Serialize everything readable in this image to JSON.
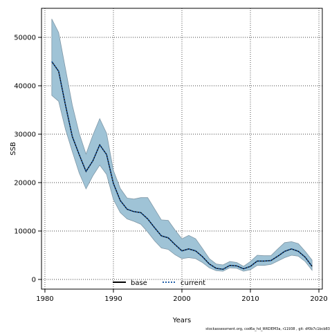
{
  "chart_data": {
    "type": "line",
    "xlabel": "Years",
    "ylabel": "SSB",
    "xlim": [
      1979.5,
      2020.5
    ],
    "ylim": [
      -2000,
      56000
    ],
    "x_ticks": [
      1980,
      1990,
      2000,
      2010,
      2020
    ],
    "y_ticks": [
      0,
      10000,
      20000,
      30000,
      40000,
      50000
    ],
    "grid": true,
    "legend_placement": "bottom-center",
    "band_color": "#9fc3d6",
    "band_edge_color": "#7f97a6",
    "x": [
      1981,
      1982,
      1983,
      1984,
      1985,
      1986,
      1987,
      1988,
      1989,
      1990,
      1991,
      1992,
      1993,
      1994,
      1995,
      1996,
      1997,
      1998,
      1999,
      2000,
      2001,
      2002,
      2003,
      2004,
      2005,
      2006,
      2007,
      2008,
      2009,
      2010,
      2011,
      2012,
      2013,
      2014,
      2015,
      2016,
      2017,
      2018,
      2019
    ],
    "series": [
      {
        "name": "base",
        "style": "solid",
        "color": "#000000",
        "values": [
          45000,
          43000,
          36000,
          29500,
          25800,
          22300,
          24500,
          27800,
          25800,
          19800,
          16300,
          14500,
          14000,
          13800,
          12500,
          10700,
          9000,
          8600,
          7200,
          5900,
          6300,
          5900,
          4700,
          3200,
          2300,
          2100,
          2900,
          2800,
          2200,
          2700,
          3800,
          3800,
          3900,
          4800,
          5800,
          6300,
          5800,
          4600,
          2700
        ]
      },
      {
        "name": "current",
        "style": "dotted",
        "color": "#1d5ca6",
        "values": [
          45000,
          43000,
          36000,
          29500,
          25800,
          22300,
          24500,
          27800,
          25800,
          19800,
          16300,
          14500,
          14000,
          13800,
          12500,
          10700,
          9000,
          8600,
          7200,
          5900,
          6300,
          5900,
          4700,
          3200,
          2300,
          2100,
          2900,
          2800,
          2200,
          2700,
          3800,
          3800,
          3900,
          4800,
          5800,
          6300,
          5800,
          4600,
          2700
        ]
      }
    ],
    "band": {
      "upper": [
        53800,
        51000,
        43500,
        36000,
        30200,
        25900,
        29800,
        33200,
        30200,
        22500,
        18800,
        16800,
        16600,
        16900,
        16900,
        14600,
        12300,
        12200,
        10200,
        8400,
        9100,
        8400,
        6400,
        4300,
        3200,
        3000,
        3700,
        3500,
        2700,
        3700,
        5000,
        4900,
        4900,
        6300,
        7600,
        7800,
        7400,
        5800,
        4000
      ],
      "lower": [
        38000,
        36800,
        31000,
        26400,
        22000,
        18700,
        21400,
        23600,
        21700,
        16500,
        13800,
        12500,
        12000,
        11400,
        9800,
        8000,
        6500,
        6200,
        5100,
        4300,
        4500,
        4300,
        3500,
        2400,
        1800,
        1700,
        2400,
        2300,
        1700,
        2000,
        2900,
        2900,
        3100,
        3800,
        4500,
        5000,
        4800,
        3700,
        1900
      ]
    }
  },
  "footnote": "stockassessment.org,  cod6a_hd_WKDEM3a,  r11938 ,  git:  df0b7c1bcb83"
}
